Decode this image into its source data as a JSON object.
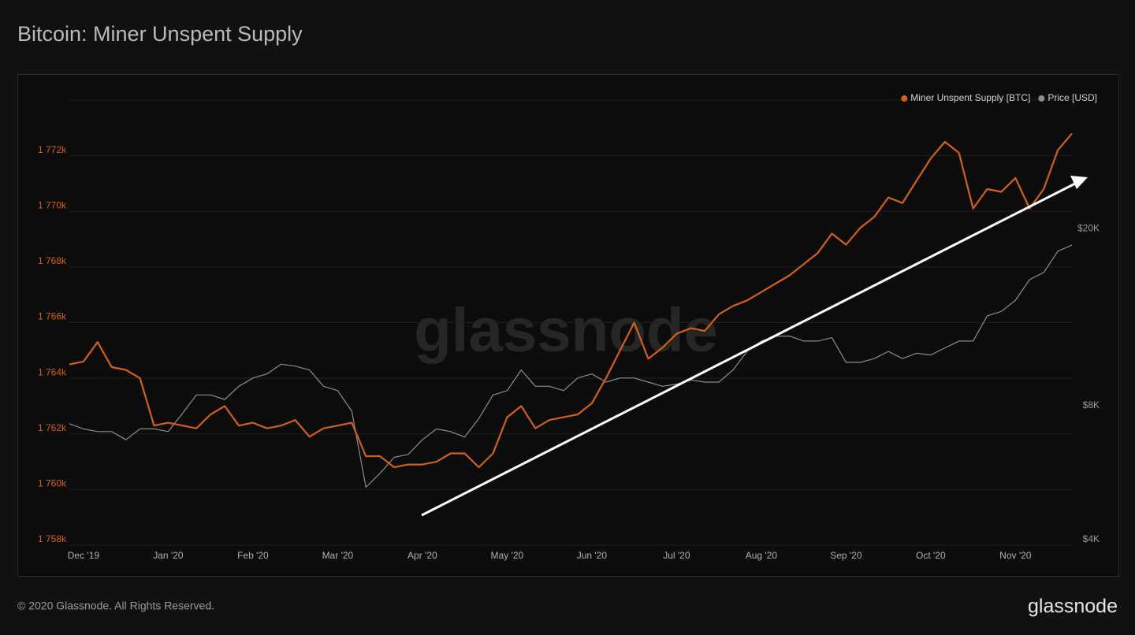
{
  "chart_data": {
    "type": "line",
    "title": "Bitcoin: Miner Unspent Supply",
    "footer": "© 2020 Glassnode. All Rights Reserved.",
    "watermark": "glassnode",
    "logo": "glassnode",
    "legend": "top-right",
    "grid": true,
    "categories": [
      null,
      "Dec '19",
      null,
      null,
      null,
      null,
      null,
      "Jan '20",
      null,
      null,
      null,
      null,
      null,
      "Feb '20",
      null,
      null,
      null,
      null,
      null,
      "Mar '20",
      null,
      null,
      null,
      null,
      null,
      "Apr '20",
      null,
      null,
      null,
      null,
      null,
      "May '20",
      null,
      null,
      null,
      null,
      null,
      "Jun '20",
      null,
      null,
      null,
      null,
      null,
      "Jul '20",
      null,
      null,
      null,
      null,
      null,
      "Aug '20",
      null,
      null,
      null,
      null,
      null,
      "Sep '20",
      null,
      null,
      null,
      null,
      null,
      "Oct '20",
      null,
      null,
      null,
      null,
      null,
      "Nov '20",
      null,
      null,
      null,
      null
    ],
    "ylim": [
      1758000,
      1774000
    ],
    "yticks": [
      {
        "value": 1758000,
        "label": "1 758k"
      },
      {
        "value": 1760000,
        "label": "1 760k"
      },
      {
        "value": 1762000,
        "label": "1 762k"
      },
      {
        "value": 1764000,
        "label": "1 764k"
      },
      {
        "value": 1766000,
        "label": "1 766k"
      },
      {
        "value": 1768000,
        "label": "1 768k"
      },
      {
        "value": 1770000,
        "label": "1 770k"
      },
      {
        "value": 1772000,
        "label": "1 772k"
      }
    ],
    "y2lim": [
      4000,
      40000
    ],
    "y2log": true,
    "y2ticks": [
      {
        "value": 4000,
        "label": "$4K"
      },
      {
        "value": 8000,
        "label": "$8K"
      },
      {
        "value": 20000,
        "label": "$20K"
      }
    ],
    "series": [
      {
        "name": "Miner Unspent Supply [BTC]",
        "color": "#d2601a",
        "values": [
          1764500,
          1764600,
          1765300,
          1764400,
          1764300,
          1764000,
          1762300,
          1762400,
          1762300,
          1762200,
          1762700,
          1763000,
          1762300,
          1762400,
          1762200,
          1762300,
          1762500,
          1761900,
          1762200,
          1762300,
          1762400,
          1761200,
          1761200,
          1760800,
          1760900,
          1760900,
          1761000,
          1761300,
          1761300,
          1760800,
          1761300,
          1762600,
          1763000,
          1762200,
          1762500,
          1762600,
          1762700,
          1763100,
          1764000,
          1765000,
          1766000,
          1764700,
          1765100,
          1765600,
          1765800,
          1765700,
          1766300,
          1766600,
          1766800,
          1767100,
          1767400,
          1767700,
          1768100,
          1768500,
          1769200,
          1768800,
          1769400,
          1769800,
          1770500,
          1770300,
          1771100,
          1771900,
          1772500,
          1772100,
          1770100,
          1770800,
          1770700,
          1771200,
          1770100,
          1770800,
          1772200,
          1772800
        ]
      },
      {
        "name": "Price [USD]",
        "color": "#8c8c8c",
        "axis": "y2",
        "values": [
          7500,
          7300,
          7200,
          7200,
          6900,
          7300,
          7300,
          7200,
          7900,
          8700,
          8700,
          8500,
          9100,
          9500,
          9700,
          10200,
          10100,
          9900,
          9100,
          8900,
          8000,
          5400,
          5800,
          6300,
          6400,
          6900,
          7300,
          7200,
          7000,
          7700,
          8700,
          8900,
          9900,
          9100,
          9100,
          8900,
          9500,
          9700,
          9300,
          9500,
          9500,
          9300,
          9100,
          9200,
          9400,
          9300,
          9300,
          9900,
          10900,
          11500,
          11800,
          11800,
          11500,
          11500,
          11700,
          10300,
          10300,
          10500,
          10900,
          10500,
          10800,
          10700,
          11100,
          11500,
          11500,
          13100,
          13400,
          14200,
          15800,
          16400,
          18300,
          18900
        ]
      }
    ]
  }
}
